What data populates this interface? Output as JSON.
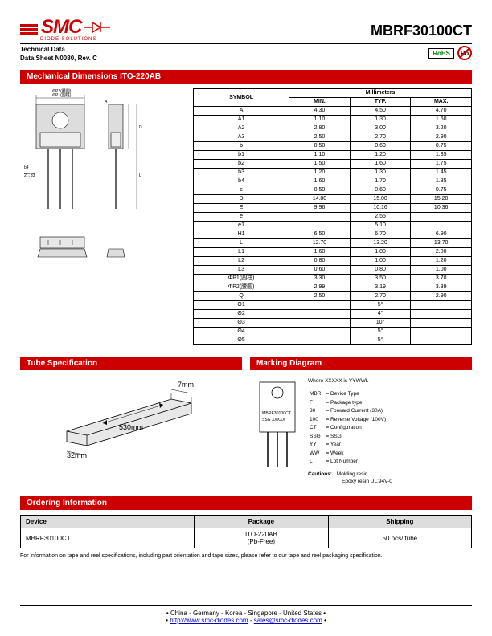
{
  "header": {
    "logo_text": "SMC",
    "logo_sub": "DIODE SOLUTIONS",
    "part_number": "MBRF30100CT",
    "tech_line1": "Technical Data",
    "tech_line2": "Data Sheet N0080, Rev. C",
    "rohs": "RoHS",
    "pb": "Pb"
  },
  "sections": {
    "mech": "Mechanical Dimensions ITO-220AB",
    "tube": "Tube Specification",
    "marking": "Marking Diagram",
    "ordering": "Ordering Information"
  },
  "dim_table": {
    "header_symbol": "SYMBOL",
    "header_units": "Millimeters",
    "cols": [
      "MIN.",
      "TYP.",
      "MAX."
    ],
    "rows": [
      {
        "s": "A",
        "min": "4.30",
        "typ": "4.50",
        "max": "4.70"
      },
      {
        "s": "A1",
        "min": "1.10",
        "typ": "1.30",
        "max": "1.50"
      },
      {
        "s": "A2",
        "min": "2.80",
        "typ": "3.00",
        "max": "3.20"
      },
      {
        "s": "A3",
        "min": "2.50",
        "typ": "2.70",
        "max": "2.90"
      },
      {
        "s": "b",
        "min": "0.50",
        "typ": "0.60",
        "max": "0.75"
      },
      {
        "s": "b1",
        "min": "1.10",
        "typ": "1.20",
        "max": "1.35"
      },
      {
        "s": "b2",
        "min": "1.50",
        "typ": "1.60",
        "max": "1.75"
      },
      {
        "s": "b3",
        "min": "1.20",
        "typ": "1.30",
        "max": "1.45"
      },
      {
        "s": "b4",
        "min": "1.60",
        "typ": "1.70",
        "max": "1.85"
      },
      {
        "s": "c",
        "min": "0.50",
        "typ": "0.60",
        "max": "0.75"
      },
      {
        "s": "D",
        "min": "14.80",
        "typ": "15.00",
        "max": "15.20"
      },
      {
        "s": "E",
        "min": "9.96",
        "typ": "10.16",
        "max": "10.36"
      },
      {
        "s": "e",
        "min": "",
        "typ": "2.55",
        "max": ""
      },
      {
        "s": "e1",
        "min": "",
        "typ": "5.10",
        "max": ""
      },
      {
        "s": "H1",
        "min": "6.50",
        "typ": "6.70",
        "max": "6.90"
      },
      {
        "s": "L",
        "min": "12.70",
        "typ": "13.20",
        "max": "13.70"
      },
      {
        "s": "L1",
        "min": "1.60",
        "typ": "1.80",
        "max": "2.00"
      },
      {
        "s": "L2",
        "min": "0.80",
        "typ": "1.00",
        "max": "1.20"
      },
      {
        "s": "L3",
        "min": "0.60",
        "typ": "0.80",
        "max": "1.00"
      },
      {
        "s": "ΦP1(圆柱)",
        "min": "3.30",
        "typ": "3.50",
        "max": "3.70"
      },
      {
        "s": "ΦP2(腰圆)",
        "min": "2.99",
        "typ": "3.19",
        "max": "3.39"
      },
      {
        "s": "Q",
        "min": "2.50",
        "typ": "2.70",
        "max": "2.90"
      },
      {
        "s": "Θ1",
        "min": "",
        "typ": "5°",
        "max": ""
      },
      {
        "s": "Θ2",
        "min": "",
        "typ": "4°",
        "max": ""
      },
      {
        "s": "Θ3",
        "min": "",
        "typ": "10°",
        "max": ""
      },
      {
        "s": "Θ4",
        "min": "",
        "typ": "5°",
        "max": ""
      },
      {
        "s": "Θ5",
        "min": "",
        "typ": "5°",
        "max": ""
      }
    ]
  },
  "tube": {
    "w": "7mm",
    "l": "530mm",
    "h": "32mm"
  },
  "marking": {
    "where": "Where XXXXX is YYWWL",
    "chip_line1": "MBRF30100CT",
    "chip_line2": "SSG   XXXXX",
    "legend": [
      {
        "k": "MBR",
        "v": "= Device Type"
      },
      {
        "k": "F",
        "v": "= Package type"
      },
      {
        "k": "30",
        "v": "= Forward Current (30A)"
      },
      {
        "k": "100",
        "v": "= Reverse Voltage (100V)"
      },
      {
        "k": "CT",
        "v": "= Configuration"
      },
      {
        "k": "SSG",
        "v": "= SSG"
      },
      {
        "k": "YY",
        "v": "= Year"
      },
      {
        "k": "WW",
        "v": "= Week"
      },
      {
        "k": "L",
        "v": "= Lot Number"
      }
    ],
    "cautions_label": "Cautions:",
    "cautions1": "Molding resin",
    "cautions2": "Epoxy resin UL:94V-0"
  },
  "ordering": {
    "cols": [
      "Device",
      "Package",
      "Shipping"
    ],
    "row": [
      "MBRF30100CT",
      "ITO-220AB\n(Pb-Free)",
      "50 pcs/ tube"
    ],
    "footnote": "For information on tape and reel specifications, including part orientation and tape sizes, please refer to our tape and reel packaging specification."
  },
  "footer": {
    "countries": "• China  -  Germany  -  Korea  -  Singapore  -  United States •",
    "links_prefix": "• ",
    "url": "http://www.smc-diodes.com",
    "sep": "  -  ",
    "email": "sales@smc-diodes.com",
    "links_suffix": " •"
  },
  "colors": {
    "brand_red": "#c00000",
    "rohs_green": "#008000",
    "link_blue": "#0000cc",
    "header_gray": "#dddddd"
  }
}
